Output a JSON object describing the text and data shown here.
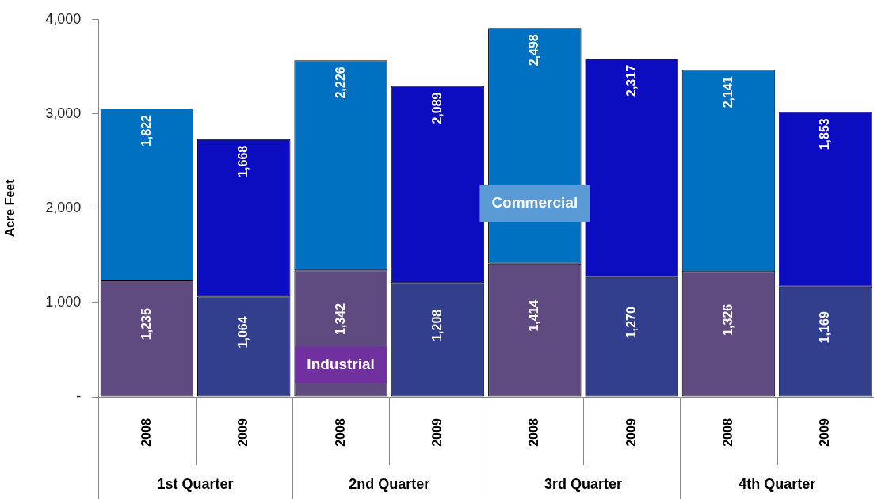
{
  "chart_data": {
    "type": "bar",
    "stacked": true,
    "ylabel": "Acre Feet",
    "categories": [
      "2008",
      "2009",
      "2008",
      "2009",
      "2008",
      "2009",
      "2008",
      "2009"
    ],
    "annotations": [
      "1st Quarter",
      "2nd Quarter",
      "3rd Quarter",
      "4th Quarter"
    ],
    "series": [
      {
        "name": "Industrial",
        "colors": [
          "#5f4b7f",
          "#323f8c",
          "#5f4b7f",
          "#323f8c",
          "#5f4b7f",
          "#323f8c",
          "#5f4b7f",
          "#323f8c"
        ],
        "values": [
          1235,
          1064,
          1342,
          1208,
          1414,
          1270,
          1326,
          1169
        ],
        "value_labels": [
          "1,235",
          "1,064",
          "1,342",
          "1,208",
          "1,414",
          "1,270",
          "1,326",
          "1,169"
        ]
      },
      {
        "name": "Commercial",
        "colors": [
          "#0070c0",
          "#0c0cc0",
          "#0070c0",
          "#0c0cc0",
          "#0070c0",
          "#0c0cc0",
          "#0070c0",
          "#0c0cc0"
        ],
        "values": [
          1822,
          1668,
          2226,
          2089,
          2498,
          2317,
          2141,
          1853
        ],
        "value_labels": [
          "1,822",
          "1,668",
          "2,226",
          "2,089",
          "2,498",
          "2,317",
          "2,141",
          "1,853"
        ]
      }
    ],
    "ylim": [
      0,
      4000
    ],
    "yticks": [
      {
        "value": 0,
        "label": "-"
      },
      {
        "value": 1000,
        "label": "1,000"
      },
      {
        "value": 2000,
        "label": "2,000"
      },
      {
        "value": 3000,
        "label": "3,000"
      },
      {
        "value": 4000,
        "label": "4,000"
      }
    ],
    "grid": false
  }
}
